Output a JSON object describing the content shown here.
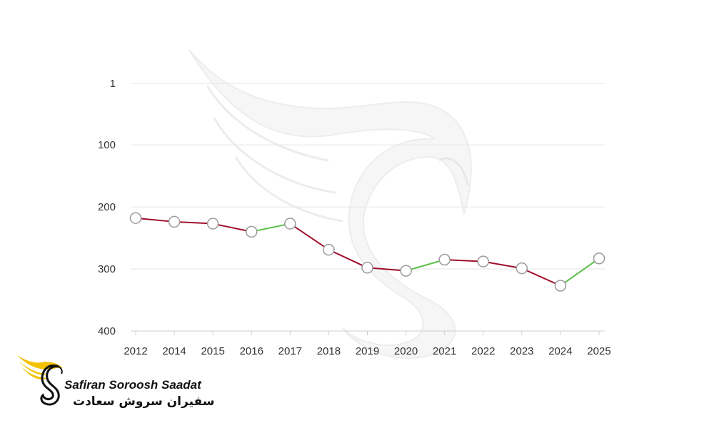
{
  "chart_data": {
    "type": "line",
    "title": "",
    "xlabel": "",
    "ylabel": "",
    "y_inverted": true,
    "ylim": [
      1,
      400
    ],
    "y_ticks": [
      "1",
      "100",
      "200",
      "300",
      "400"
    ],
    "grid": true,
    "x": [
      "2012",
      "2014",
      "2015",
      "2016",
      "2017",
      "2018",
      "2019",
      "2020",
      "2021",
      "2022",
      "2023",
      "2024",
      "2025"
    ],
    "series": [
      {
        "values": [
          218,
          224,
          227,
          240,
          227,
          269,
          298,
          303,
          285,
          288,
          299,
          327,
          283
        ]
      }
    ],
    "colors": {
      "worse": "#a0102a",
      "better": "#5cc24a",
      "latest_point": "#1e63c4"
    }
  },
  "brand": {
    "name_en": "Safiran Soroosh Saadat",
    "name_fa": "سفیران سروش سعادت",
    "logo_icon": "winged-s-logo-icon",
    "logo_color": "#f2c200"
  }
}
